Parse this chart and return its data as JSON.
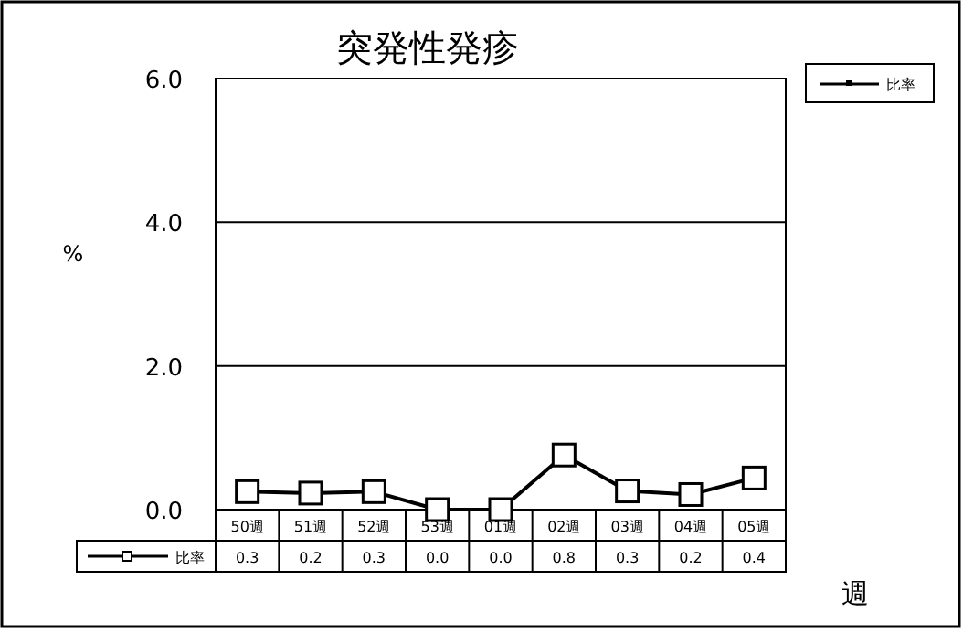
{
  "chart_data": {
    "type": "line",
    "title": "突発性発疹",
    "ylabel": "%",
    "xlabel": "週",
    "categories": [
      "50週",
      "51週",
      "52週",
      "53週",
      "01週",
      "02週",
      "03週",
      "04週",
      "05週"
    ],
    "series": [
      {
        "name": "比率",
        "color": "#000000",
        "values": [
          0.25,
          0.23,
          0.25,
          0.0,
          0.0,
          0.76,
          0.26,
          0.21,
          0.44
        ],
        "value_labels": [
          "0.3",
          "0.2",
          "0.3",
          "0.0",
          "0.0",
          "0.8",
          "0.3",
          "0.2",
          "0.4"
        ]
      }
    ],
    "ylim": [
      0,
      6
    ],
    "yticks": [
      {
        "value": 0,
        "label": "0.0"
      },
      {
        "value": 2,
        "label": "2.0"
      },
      {
        "value": 4,
        "label": "4.0"
      },
      {
        "value": 6,
        "label": "6.0"
      }
    ],
    "grid": "y",
    "legend": "top right",
    "marker": "square"
  }
}
